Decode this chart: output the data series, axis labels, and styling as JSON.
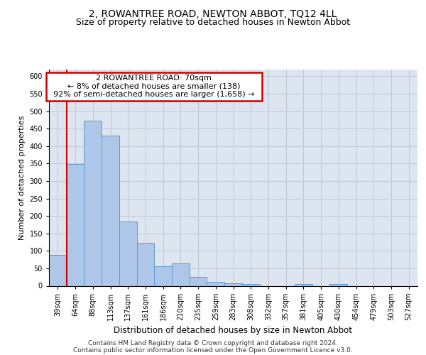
{
  "title": "2, ROWANTREE ROAD, NEWTON ABBOT, TQ12 4LL",
  "subtitle": "Size of property relative to detached houses in Newton Abbot",
  "xlabel": "Distribution of detached houses by size in Newton Abbot",
  "ylabel": "Number of detached properties",
  "categories": [
    "39sqm",
    "64sqm",
    "88sqm",
    "113sqm",
    "137sqm",
    "161sqm",
    "186sqm",
    "210sqm",
    "235sqm",
    "259sqm",
    "283sqm",
    "308sqm",
    "332sqm",
    "357sqm",
    "381sqm",
    "405sqm",
    "430sqm",
    "454sqm",
    "479sqm",
    "503sqm",
    "527sqm"
  ],
  "values": [
    88,
    348,
    472,
    430,
    183,
    122,
    55,
    65,
    25,
    12,
    8,
    5,
    0,
    0,
    5,
    0,
    5,
    0,
    0,
    0,
    0
  ],
  "bar_color": "#aec6e8",
  "bar_edge_color": "#5b9bd5",
  "grid_color": "#c0c8d8",
  "background_color": "#dde5f0",
  "annotation_box_text": "  2 ROWANTREE ROAD: 70sqm  \n  ← 8% of detached houses are smaller (138)  \n  92% of semi-detached houses are larger (1,658) →  ",
  "annotation_box_edge_color": "#cc0000",
  "vline_color": "#cc0000",
  "ylim": [
    0,
    620
  ],
  "yticks": [
    0,
    50,
    100,
    150,
    200,
    250,
    300,
    350,
    400,
    450,
    500,
    550,
    600
  ],
  "footer_line1": "Contains HM Land Registry data © Crown copyright and database right 2024.",
  "footer_line2": "Contains public sector information licensed under the Open Government Licence v3.0.",
  "title_fontsize": 10,
  "subtitle_fontsize": 9,
  "xlabel_fontsize": 8.5,
  "ylabel_fontsize": 8,
  "annotation_fontsize": 8,
  "footer_fontsize": 6.5,
  "tick_fontsize": 7
}
